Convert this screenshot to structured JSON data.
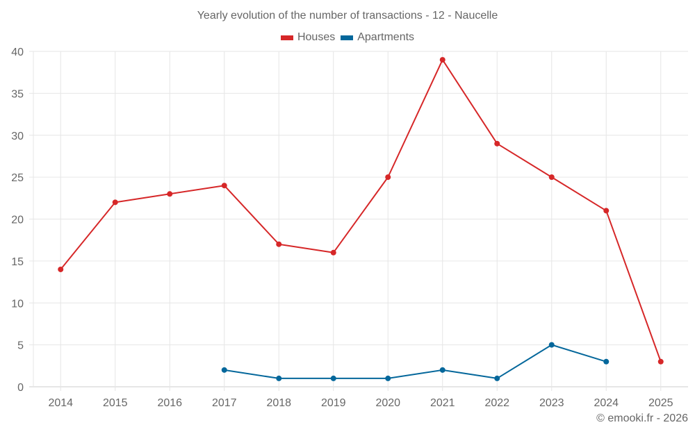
{
  "chart_data": {
    "type": "line",
    "title": "Yearly evolution of the number of transactions - 12 - Naucelle",
    "xlabel": "",
    "ylabel": "",
    "categories": [
      "2014",
      "2015",
      "2016",
      "2017",
      "2018",
      "2019",
      "2020",
      "2021",
      "2022",
      "2023",
      "2024",
      "2025"
    ],
    "ylim": [
      0,
      40
    ],
    "yticks": [
      0,
      5,
      10,
      15,
      20,
      25,
      30,
      35,
      40
    ],
    "grid": true,
    "legend_position": "top-center",
    "series": [
      {
        "name": "Houses",
        "color": "#d62728",
        "values": [
          14,
          22,
          23,
          24,
          17,
          16,
          25,
          39,
          29,
          25,
          21,
          3
        ]
      },
      {
        "name": "Apartments",
        "color": "#04679b",
        "values": [
          null,
          null,
          null,
          2,
          1,
          1,
          1,
          2,
          1,
          5,
          3,
          null
        ]
      }
    ]
  },
  "credit": "© emooki.fr - 2026"
}
